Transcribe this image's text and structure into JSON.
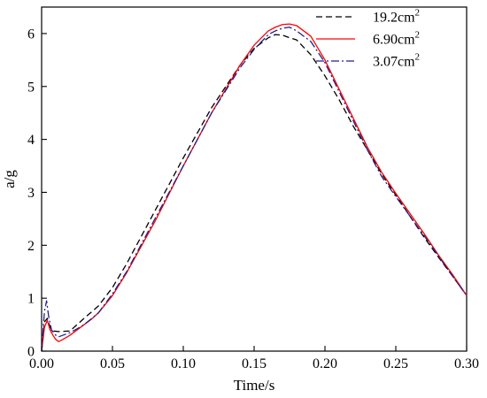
{
  "chart_data": {
    "type": "line",
    "xlabel": "Time/s",
    "ylabel": "a/g",
    "xlim": [
      0.0,
      0.3
    ],
    "ylim": [
      0,
      6.5
    ],
    "xticks": [
      0.0,
      0.05,
      0.1,
      0.15,
      0.2,
      0.25,
      0.3
    ],
    "xtick_labels": [
      "0.00",
      "0.05",
      "0.10",
      "0.15",
      "0.20",
      "0.25",
      "0.30"
    ],
    "yticks": [
      0,
      1,
      2,
      3,
      4,
      5,
      6
    ],
    "ytick_labels": [
      "0",
      "1",
      "2",
      "3",
      "4",
      "5",
      "6"
    ],
    "grid": false,
    "legend_position": "top-right",
    "series": [
      {
        "name": "19.2cm",
        "superscript": "2",
        "color": "#000000",
        "dash": "dashed",
        "x": [
          0,
          0.002,
          0.004,
          0.006,
          0.008,
          0.012,
          0.02,
          0.025,
          0.03,
          0.04,
          0.05,
          0.06,
          0.08,
          0.1,
          0.12,
          0.14,
          0.15,
          0.16,
          0.165,
          0.17,
          0.175,
          0.18,
          0.19,
          0.2,
          0.21,
          0.22,
          0.23,
          0.24,
          0.25,
          0.26,
          0.27,
          0.28,
          0.29,
          0.3
        ],
        "y": [
          0.0,
          0.55,
          0.62,
          0.45,
          0.38,
          0.37,
          0.38,
          0.5,
          0.62,
          0.85,
          1.2,
          1.65,
          2.65,
          3.65,
          4.6,
          5.4,
          5.72,
          5.92,
          5.98,
          5.97,
          5.92,
          5.88,
          5.6,
          5.2,
          4.75,
          4.25,
          3.8,
          3.35,
          2.95,
          2.55,
          2.15,
          1.78,
          1.42,
          1.05
        ]
      },
      {
        "name": "6.90cm",
        "superscript": "2",
        "color": "#ff0000",
        "dash": "solid",
        "x": [
          0,
          0.002,
          0.004,
          0.006,
          0.008,
          0.01,
          0.012,
          0.015,
          0.02,
          0.025,
          0.03,
          0.035,
          0.04,
          0.05,
          0.06,
          0.08,
          0.1,
          0.12,
          0.14,
          0.15,
          0.16,
          0.165,
          0.17,
          0.175,
          0.18,
          0.19,
          0.2,
          0.21,
          0.22,
          0.23,
          0.24,
          0.25,
          0.26,
          0.27,
          0.28,
          0.29,
          0.3
        ],
        "y": [
          0.0,
          0.45,
          0.58,
          0.4,
          0.3,
          0.22,
          0.18,
          0.22,
          0.3,
          0.4,
          0.5,
          0.6,
          0.72,
          1.05,
          1.48,
          2.45,
          3.5,
          4.5,
          5.4,
          5.78,
          6.05,
          6.12,
          6.17,
          6.18,
          6.15,
          5.95,
          5.5,
          4.95,
          4.4,
          3.85,
          3.38,
          2.98,
          2.6,
          2.22,
          1.82,
          1.45,
          1.05
        ]
      },
      {
        "name": "3.07cm",
        "superscript": "2",
        "color": "#1f1f8f",
        "dash": "dashdot",
        "x": [
          0,
          0.002,
          0.0035,
          0.005,
          0.007,
          0.01,
          0.012,
          0.015,
          0.02,
          0.025,
          0.03,
          0.04,
          0.05,
          0.06,
          0.08,
          0.1,
          0.12,
          0.14,
          0.15,
          0.16,
          0.165,
          0.17,
          0.175,
          0.18,
          0.19,
          0.2,
          0.21,
          0.22,
          0.23,
          0.24,
          0.25,
          0.26,
          0.27,
          0.28,
          0.29,
          0.3
        ],
        "y": [
          0.0,
          0.75,
          0.95,
          0.65,
          0.4,
          0.3,
          0.27,
          0.3,
          0.35,
          0.42,
          0.5,
          0.72,
          1.08,
          1.5,
          2.5,
          3.5,
          4.5,
          5.35,
          5.7,
          5.98,
          6.05,
          6.1,
          6.12,
          6.05,
          5.85,
          5.45,
          4.9,
          4.35,
          3.8,
          3.3,
          2.92,
          2.55,
          2.18,
          1.8,
          1.42,
          1.05
        ]
      }
    ]
  }
}
